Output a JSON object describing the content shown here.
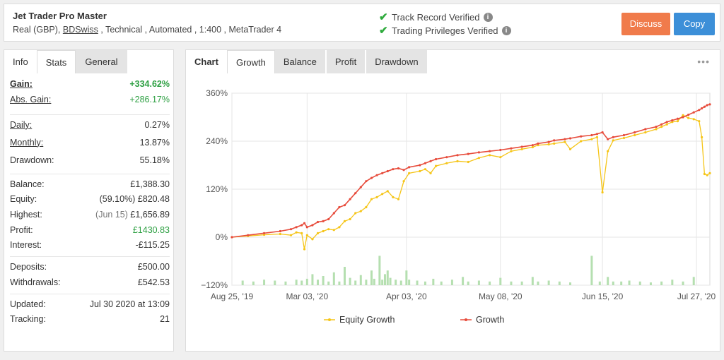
{
  "header": {
    "account_name": "Jet Trader Pro Master",
    "details_prefix": "Real (GBP), ",
    "broker": "BDSwiss",
    "details_suffix": " , Technical , Automated , 1:400 , MetaTrader 4",
    "verified_track": "Track Record Verified",
    "verified_privileges": "Trading Privileges Verified",
    "discuss_label": "Discuss",
    "copy_label": "Copy",
    "colors": {
      "discuss": "#f07b4b",
      "copy": "#3c8fd8",
      "check": "#2eaa3c"
    }
  },
  "stats_panel": {
    "tabs": [
      "Info",
      "Stats",
      "General"
    ],
    "active_tab": "Stats",
    "gain": {
      "label": "Gain:",
      "value": "+334.62%"
    },
    "abs_gain": {
      "label": "Abs. Gain:",
      "value": "+286.17%"
    },
    "daily": {
      "label": "Daily:",
      "value": "0.27%"
    },
    "monthly": {
      "label": "Monthly:",
      "value": "13.87%"
    },
    "drawdown": {
      "label": "Drawdown:",
      "value": "55.18%"
    },
    "balance": {
      "label": "Balance:",
      "value": "£1,388.30"
    },
    "equity": {
      "label": "Equity:",
      "pct": "(59.10%)",
      "value": "£820.48"
    },
    "highest": {
      "label": "Highest:",
      "date": "(Jun 15)",
      "value": "£1,656.89"
    },
    "profit": {
      "label": "Profit:",
      "value": "£1430.83"
    },
    "interest": {
      "label": "Interest:",
      "value": "-£115.25"
    },
    "deposits": {
      "label": "Deposits:",
      "value": "£500.00"
    },
    "withdrawals": {
      "label": "Withdrawals:",
      "value": "£542.53"
    },
    "updated": {
      "label": "Updated:",
      "value": "Jul 30 2020 at 13:09"
    },
    "tracking": {
      "label": "Tracking:",
      "value": "21"
    }
  },
  "chart_panel": {
    "tabs": [
      "Chart",
      "Growth",
      "Balance",
      "Profit",
      "Drawdown"
    ],
    "active_tab": "Growth",
    "more_icon": "ellipsis-icon"
  },
  "chart_data": {
    "type": "line",
    "y_tick_labels": [
      "360%",
      "240%",
      "120%",
      "0%",
      "−120%"
    ],
    "y_ticks": [
      360,
      240,
      120,
      0,
      -120
    ],
    "ylim": [
      -120,
      360
    ],
    "x_tick_labels": [
      "Aug 25, '19",
      "Mar 03, '20",
      "Apr 03, '20",
      "May 08, '20",
      "Jun 15, '20",
      "Jul 27, '20"
    ],
    "x_tick_index": [
      0,
      28,
      65,
      100,
      138,
      173
    ],
    "x_count": 175,
    "grid": true,
    "legend_position": "bottom",
    "series": [
      {
        "name": "Equity Growth",
        "color": "#f5c518",
        "points": [
          [
            0,
            0
          ],
          [
            6,
            3
          ],
          [
            12,
            6
          ],
          [
            18,
            8
          ],
          [
            22,
            5
          ],
          [
            24,
            12
          ],
          [
            26,
            10
          ],
          [
            27,
            -30
          ],
          [
            28,
            5
          ],
          [
            30,
            -5
          ],
          [
            32,
            10
          ],
          [
            34,
            15
          ],
          [
            36,
            20
          ],
          [
            38,
            18
          ],
          [
            40,
            25
          ],
          [
            42,
            40
          ],
          [
            44,
            45
          ],
          [
            46,
            60
          ],
          [
            48,
            65
          ],
          [
            50,
            75
          ],
          [
            52,
            95
          ],
          [
            54,
            100
          ],
          [
            56,
            108
          ],
          [
            58,
            115
          ],
          [
            60,
            100
          ],
          [
            62,
            95
          ],
          [
            64,
            140
          ],
          [
            66,
            160
          ],
          [
            70,
            165
          ],
          [
            72,
            170
          ],
          [
            74,
            160
          ],
          [
            76,
            178
          ],
          [
            80,
            185
          ],
          [
            84,
            190
          ],
          [
            88,
            188
          ],
          [
            92,
            198
          ],
          [
            96,
            205
          ],
          [
            100,
            200
          ],
          [
            104,
            215
          ],
          [
            108,
            220
          ],
          [
            112,
            225
          ],
          [
            114,
            230
          ],
          [
            118,
            232
          ],
          [
            120,
            234
          ],
          [
            124,
            238
          ],
          [
            126,
            220
          ],
          [
            130,
            240
          ],
          [
            134,
            245
          ],
          [
            136,
            250
          ],
          [
            138,
            112
          ],
          [
            140,
            215
          ],
          [
            142,
            242
          ],
          [
            146,
            248
          ],
          [
            150,
            255
          ],
          [
            154,
            262
          ],
          [
            158,
            270
          ],
          [
            160,
            276
          ],
          [
            162,
            282
          ],
          [
            164,
            288
          ],
          [
            166,
            290
          ],
          [
            168,
            305
          ],
          [
            170,
            298
          ],
          [
            172,
            295
          ],
          [
            174,
            290
          ],
          [
            175,
            250
          ],
          [
            176,
            158
          ],
          [
            177,
            155
          ],
          [
            178,
            160
          ]
        ]
      },
      {
        "name": "Growth",
        "color": "#e74c3c",
        "points": [
          [
            0,
            0
          ],
          [
            6,
            5
          ],
          [
            12,
            10
          ],
          [
            18,
            15
          ],
          [
            22,
            20
          ],
          [
            24,
            25
          ],
          [
            26,
            30
          ],
          [
            27,
            35
          ],
          [
            28,
            25
          ],
          [
            30,
            30
          ],
          [
            32,
            38
          ],
          [
            34,
            40
          ],
          [
            36,
            45
          ],
          [
            38,
            60
          ],
          [
            40,
            75
          ],
          [
            42,
            80
          ],
          [
            44,
            95
          ],
          [
            46,
            110
          ],
          [
            48,
            125
          ],
          [
            50,
            140
          ],
          [
            52,
            148
          ],
          [
            54,
            155
          ],
          [
            56,
            160
          ],
          [
            58,
            165
          ],
          [
            60,
            170
          ],
          [
            62,
            172
          ],
          [
            64,
            168
          ],
          [
            66,
            175
          ],
          [
            70,
            180
          ],
          [
            72,
            185
          ],
          [
            74,
            190
          ],
          [
            76,
            195
          ],
          [
            80,
            200
          ],
          [
            84,
            205
          ],
          [
            88,
            208
          ],
          [
            92,
            212
          ],
          [
            96,
            215
          ],
          [
            100,
            218
          ],
          [
            104,
            222
          ],
          [
            108,
            226
          ],
          [
            112,
            230
          ],
          [
            114,
            234
          ],
          [
            118,
            238
          ],
          [
            120,
            242
          ],
          [
            124,
            245
          ],
          [
            126,
            247
          ],
          [
            130,
            252
          ],
          [
            134,
            255
          ],
          [
            136,
            258
          ],
          [
            138,
            262
          ],
          [
            140,
            245
          ],
          [
            142,
            250
          ],
          [
            146,
            255
          ],
          [
            150,
            262
          ],
          [
            154,
            270
          ],
          [
            158,
            276
          ],
          [
            160,
            282
          ],
          [
            162,
            288
          ],
          [
            164,
            292
          ],
          [
            166,
            296
          ],
          [
            168,
            300
          ],
          [
            170,
            306
          ],
          [
            172,
            312
          ],
          [
            174,
            318
          ],
          [
            175,
            322
          ],
          [
            176,
            326
          ],
          [
            177,
            330
          ],
          [
            178,
            332
          ]
        ]
      }
    ],
    "volume_bars": [
      {
        "i": 4,
        "v": 0.25
      },
      {
        "i": 8,
        "v": 0.2
      },
      {
        "i": 12,
        "v": 0.3
      },
      {
        "i": 16,
        "v": 0.25
      },
      {
        "i": 20,
        "v": 0.2
      },
      {
        "i": 24,
        "v": 0.3
      },
      {
        "i": 26,
        "v": 0.25
      },
      {
        "i": 28,
        "v": 0.35
      },
      {
        "i": 30,
        "v": 0.6
      },
      {
        "i": 32,
        "v": 0.3
      },
      {
        "i": 34,
        "v": 0.5
      },
      {
        "i": 36,
        "v": 0.2
      },
      {
        "i": 38,
        "v": 0.7
      },
      {
        "i": 40,
        "v": 0.2
      },
      {
        "i": 42,
        "v": 1.0
      },
      {
        "i": 44,
        "v": 0.4
      },
      {
        "i": 46,
        "v": 0.25
      },
      {
        "i": 48,
        "v": 0.55
      },
      {
        "i": 50,
        "v": 0.3
      },
      {
        "i": 52,
        "v": 0.8
      },
      {
        "i": 53,
        "v": 0.35
      },
      {
        "i": 55,
        "v": 1.6
      },
      {
        "i": 56,
        "v": 0.3
      },
      {
        "i": 57,
        "v": 0.6
      },
      {
        "i": 58,
        "v": 0.8
      },
      {
        "i": 59,
        "v": 0.4
      },
      {
        "i": 61,
        "v": 0.3
      },
      {
        "i": 63,
        "v": 0.25
      },
      {
        "i": 65,
        "v": 0.8
      },
      {
        "i": 66,
        "v": 0.3
      },
      {
        "i": 69,
        "v": 0.25
      },
      {
        "i": 72,
        "v": 0.2
      },
      {
        "i": 75,
        "v": 0.35
      },
      {
        "i": 78,
        "v": 0.2
      },
      {
        "i": 82,
        "v": 0.3
      },
      {
        "i": 86,
        "v": 0.45
      },
      {
        "i": 88,
        "v": 0.2
      },
      {
        "i": 92,
        "v": 0.25
      },
      {
        "i": 96,
        "v": 0.2
      },
      {
        "i": 100,
        "v": 0.4
      },
      {
        "i": 104,
        "v": 0.2
      },
      {
        "i": 108,
        "v": 0.2
      },
      {
        "i": 112,
        "v": 0.45
      },
      {
        "i": 114,
        "v": 0.2
      },
      {
        "i": 118,
        "v": 0.25
      },
      {
        "i": 122,
        "v": 0.2
      },
      {
        "i": 126,
        "v": 0.15
      },
      {
        "i": 134,
        "v": 1.6
      },
      {
        "i": 137,
        "v": 0.2
      },
      {
        "i": 140,
        "v": 0.45
      },
      {
        "i": 142,
        "v": 0.2
      },
      {
        "i": 145,
        "v": 0.2
      },
      {
        "i": 148,
        "v": 0.25
      },
      {
        "i": 152,
        "v": 0.2
      },
      {
        "i": 156,
        "v": 0.15
      },
      {
        "i": 160,
        "v": 0.2
      },
      {
        "i": 164,
        "v": 0.3
      },
      {
        "i": 168,
        "v": 0.2
      },
      {
        "i": 172,
        "v": 0.45
      }
    ],
    "volume_bar_color": "#b5dfb0"
  }
}
